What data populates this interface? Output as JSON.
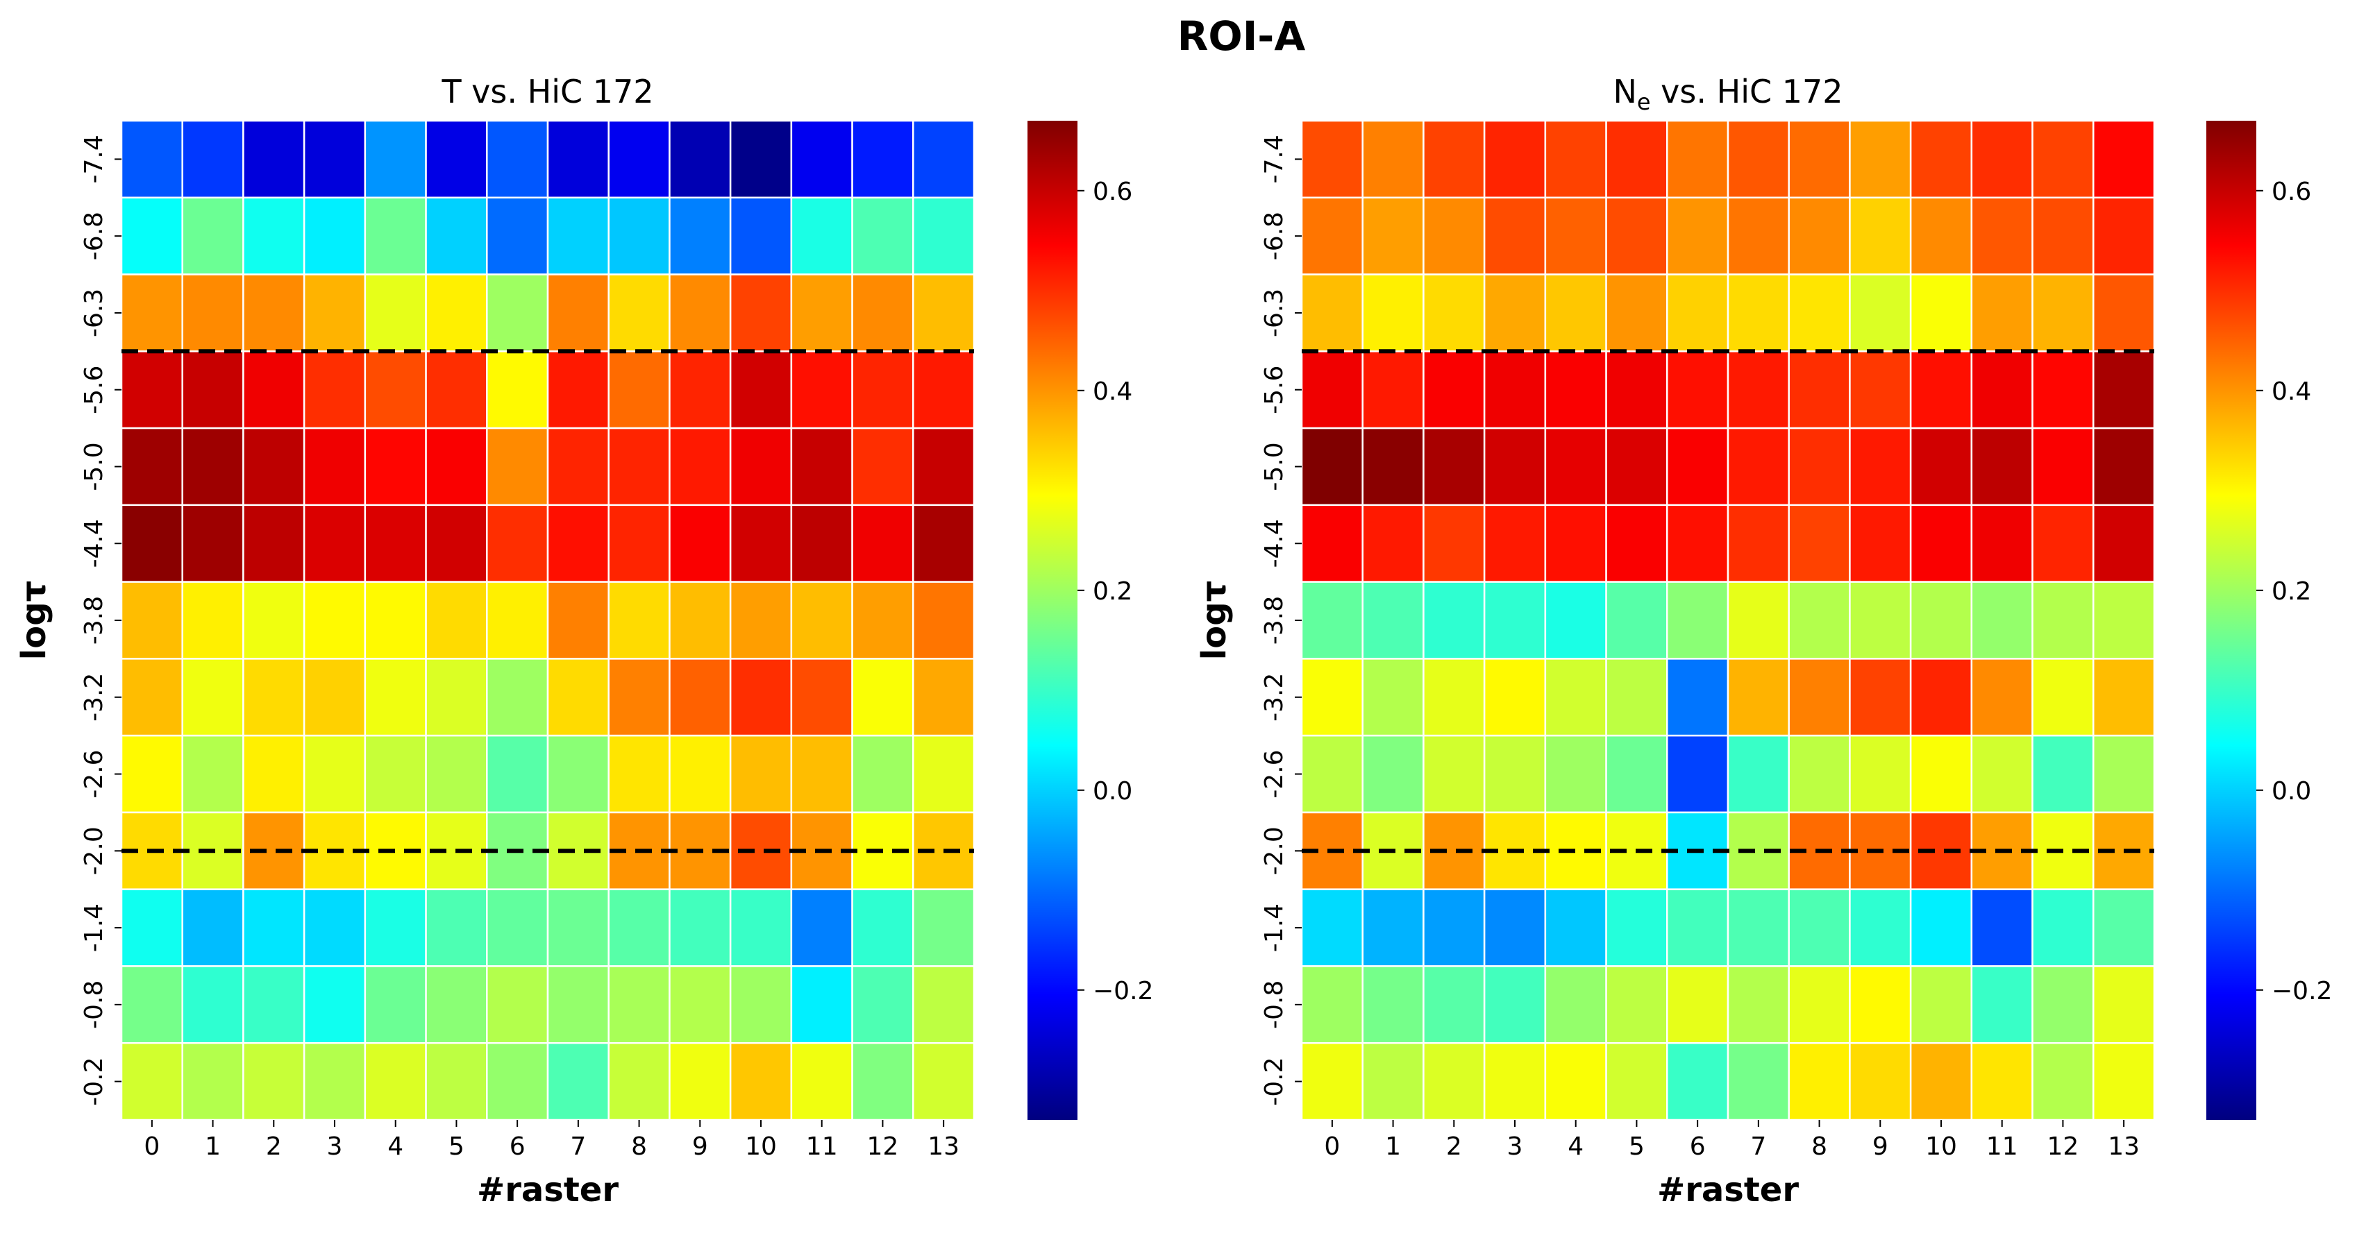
{
  "figure_title": "ROI-A",
  "chart_data": [
    {
      "type": "heatmap",
      "title": "T vs. HiC 172",
      "title_main": "T vs. HiC 172",
      "title_subscript": "",
      "title_rest": "",
      "xlabel": "#raster",
      "ylabel": "logτ",
      "x_categories": [
        "0",
        "1",
        "2",
        "3",
        "4",
        "5",
        "6",
        "7",
        "8",
        "9",
        "10",
        "11",
        "12",
        "13"
      ],
      "y_categories": [
        "-7.4",
        "-6.8",
        "-6.3",
        "-5.6",
        "-5.0",
        "-4.4",
        "-3.8",
        "-3.2",
        "-2.6",
        "-2.0",
        "-1.4",
        "-0.8",
        "-0.2"
      ],
      "values": [
        [
          -0.12,
          -0.15,
          -0.24,
          -0.24,
          -0.06,
          -0.23,
          -0.12,
          -0.24,
          -0.22,
          -0.28,
          -0.32,
          -0.22,
          -0.18,
          -0.14
        ],
        [
          0.05,
          0.15,
          0.06,
          0.03,
          0.15,
          0.0,
          -0.1,
          0.0,
          -0.01,
          -0.08,
          -0.12,
          0.07,
          0.12,
          0.09
        ],
        [
          0.4,
          0.41,
          0.41,
          0.37,
          0.27,
          0.31,
          0.2,
          0.42,
          0.33,
          0.41,
          0.48,
          0.39,
          0.41,
          0.36
        ],
        [
          0.59,
          0.6,
          0.56,
          0.5,
          0.47,
          0.5,
          0.3,
          0.52,
          0.44,
          0.51,
          0.59,
          0.53,
          0.51,
          0.52
        ],
        [
          0.64,
          0.64,
          0.61,
          0.56,
          0.54,
          0.55,
          0.41,
          0.51,
          0.51,
          0.52,
          0.56,
          0.6,
          0.5,
          0.6
        ],
        [
          0.66,
          0.64,
          0.61,
          0.58,
          0.58,
          0.59,
          0.5,
          0.53,
          0.51,
          0.55,
          0.59,
          0.61,
          0.56,
          0.63
        ],
        [
          0.36,
          0.31,
          0.28,
          0.3,
          0.3,
          0.33,
          0.31,
          0.42,
          0.33,
          0.36,
          0.39,
          0.36,
          0.39,
          0.43
        ],
        [
          0.36,
          0.28,
          0.33,
          0.34,
          0.28,
          0.26,
          0.2,
          0.33,
          0.42,
          0.45,
          0.5,
          0.47,
          0.29,
          0.38
        ],
        [
          0.3,
          0.22,
          0.31,
          0.27,
          0.24,
          0.22,
          0.13,
          0.18,
          0.32,
          0.31,
          0.36,
          0.36,
          0.2,
          0.27
        ],
        [
          0.33,
          0.26,
          0.4,
          0.32,
          0.3,
          0.27,
          0.17,
          0.25,
          0.4,
          0.4,
          0.47,
          0.4,
          0.29,
          0.35
        ],
        [
          0.06,
          -0.02,
          0.02,
          0.01,
          0.07,
          0.12,
          0.14,
          0.15,
          0.13,
          0.11,
          0.1,
          -0.08,
          0.09,
          0.16
        ],
        [
          0.16,
          0.09,
          0.1,
          0.06,
          0.15,
          0.18,
          0.22,
          0.19,
          0.21,
          0.22,
          0.2,
          0.03,
          0.12,
          0.23
        ],
        [
          0.25,
          0.22,
          0.24,
          0.22,
          0.26,
          0.23,
          0.19,
          0.12,
          0.24,
          0.28,
          0.35,
          0.28,
          0.17,
          0.25
        ]
      ],
      "colorbar": {
        "vmin": -0.33,
        "vmax": 0.67,
        "ticks": [
          -0.2,
          0.0,
          0.2,
          0.4,
          0.6
        ],
        "tick_labels": [
          "−0.2",
          "0.0",
          "0.2",
          "0.4",
          "0.6"
        ],
        "colormap": "jet"
      },
      "dashed_lines_between_rows": [
        [
          "-6.3",
          "-5.6"
        ],
        [
          "-2.0",
          "-2.0"
        ]
      ],
      "dashed_line_color": "#000000",
      "cell_border_color": "#ffffff"
    },
    {
      "type": "heatmap",
      "title": "Ne vs. HiC 172",
      "title_main": "N",
      "title_subscript": "e",
      "title_rest": " vs. HiC 172",
      "xlabel": "#raster",
      "ylabel": "logτ",
      "x_categories": [
        "0",
        "1",
        "2",
        "3",
        "4",
        "5",
        "6",
        "7",
        "8",
        "9",
        "10",
        "11",
        "12",
        "13"
      ],
      "y_categories": [
        "-7.4",
        "-6.8",
        "-6.3",
        "-5.6",
        "-5.0",
        "-4.4",
        "-3.8",
        "-3.2",
        "-2.6",
        "-2.0",
        "-1.4",
        "-0.8",
        "-0.2"
      ],
      "values": [
        [
          0.47,
          0.42,
          0.48,
          0.51,
          0.48,
          0.5,
          0.43,
          0.46,
          0.44,
          0.39,
          0.48,
          0.5,
          0.48,
          0.54
        ],
        [
          0.43,
          0.39,
          0.41,
          0.47,
          0.45,
          0.47,
          0.4,
          0.43,
          0.41,
          0.34,
          0.41,
          0.46,
          0.47,
          0.51
        ],
        [
          0.36,
          0.31,
          0.33,
          0.38,
          0.35,
          0.4,
          0.34,
          0.33,
          0.32,
          0.26,
          0.29,
          0.39,
          0.37,
          0.46
        ],
        [
          0.56,
          0.52,
          0.55,
          0.56,
          0.55,
          0.56,
          0.53,
          0.52,
          0.5,
          0.49,
          0.53,
          0.56,
          0.54,
          0.63
        ],
        [
          0.67,
          0.66,
          0.63,
          0.59,
          0.57,
          0.58,
          0.55,
          0.52,
          0.5,
          0.52,
          0.59,
          0.61,
          0.55,
          0.64
        ],
        [
          0.55,
          0.52,
          0.49,
          0.52,
          0.53,
          0.55,
          0.53,
          0.5,
          0.48,
          0.52,
          0.55,
          0.56,
          0.51,
          0.59
        ],
        [
          0.14,
          0.12,
          0.09,
          0.09,
          0.07,
          0.13,
          0.18,
          0.27,
          0.22,
          0.23,
          0.22,
          0.19,
          0.22,
          0.23
        ],
        [
          0.29,
          0.22,
          0.27,
          0.3,
          0.25,
          0.23,
          -0.09,
          0.37,
          0.42,
          0.48,
          0.51,
          0.41,
          0.28,
          0.36
        ],
        [
          0.23,
          0.17,
          0.25,
          0.24,
          0.2,
          0.15,
          -0.14,
          0.1,
          0.23,
          0.26,
          0.29,
          0.25,
          0.11,
          0.21
        ],
        [
          0.42,
          0.26,
          0.4,
          0.32,
          0.3,
          0.28,
          0.02,
          0.22,
          0.44,
          0.44,
          0.49,
          0.39,
          0.28,
          0.38
        ],
        [
          0.01,
          -0.03,
          -0.05,
          -0.07,
          -0.01,
          0.08,
          0.11,
          0.12,
          0.12,
          0.09,
          0.03,
          -0.13,
          0.09,
          0.13
        ],
        [
          0.2,
          0.16,
          0.13,
          0.11,
          0.19,
          0.23,
          0.27,
          0.22,
          0.27,
          0.3,
          0.23,
          0.1,
          0.19,
          0.27
        ],
        [
          0.28,
          0.23,
          0.26,
          0.28,
          0.29,
          0.25,
          0.1,
          0.16,
          0.31,
          0.33,
          0.37,
          0.32,
          0.22,
          0.28
        ]
      ],
      "colorbar": {
        "vmin": -0.33,
        "vmax": 0.67,
        "ticks": [
          -0.2,
          0.0,
          0.2,
          0.4,
          0.6
        ],
        "tick_labels": [
          "−0.2",
          "0.0",
          "0.2",
          "0.4",
          "0.6"
        ],
        "colormap": "jet"
      },
      "dashed_lines_between_rows": [
        [
          "-6.3",
          "-5.6"
        ],
        [
          "-2.0",
          "-2.0"
        ]
      ],
      "dashed_line_color": "#000000",
      "cell_border_color": "#ffffff"
    }
  ]
}
